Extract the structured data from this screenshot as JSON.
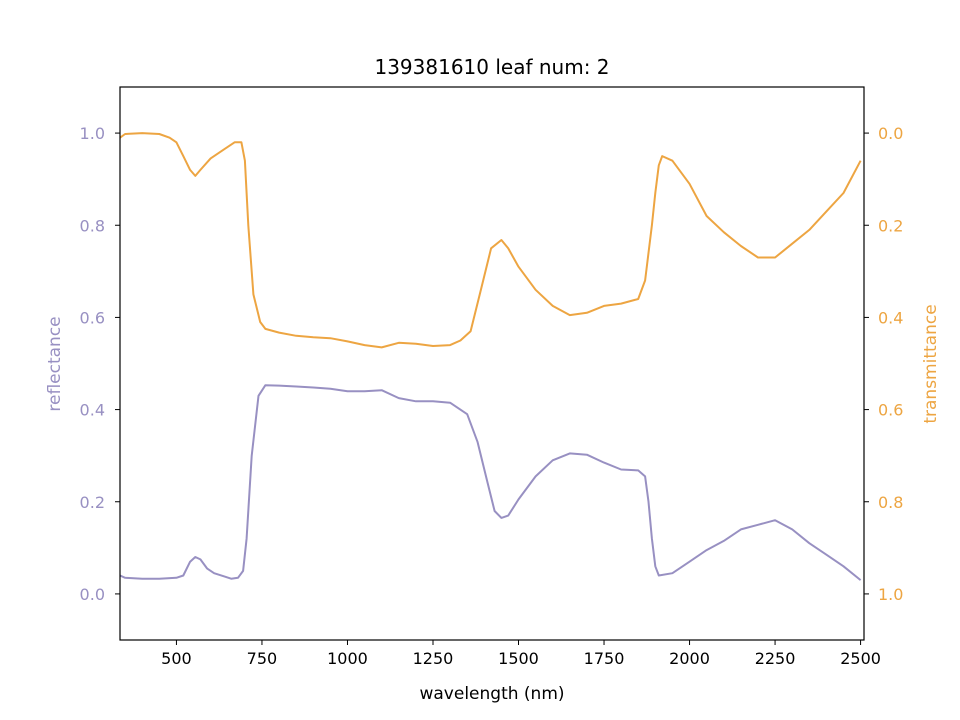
{
  "chart_data": {
    "type": "line",
    "title": "139381610 leaf num: 2",
    "xlabel": "wavelength (nm)",
    "xlim": [
      335,
      2510
    ],
    "xticks": [
      500,
      750,
      1000,
      1250,
      1500,
      1750,
      2000,
      2250,
      2500
    ],
    "grid": false,
    "axes": {
      "left": {
        "label": "reflectance",
        "color": "#9890c2",
        "ylim": [
          -0.1,
          1.1
        ],
        "ticks": [
          "0.0",
          "0.2",
          "0.4",
          "0.6",
          "0.8",
          "1.0"
        ]
      },
      "right": {
        "label": "transmittance",
        "color": "#eda542",
        "ylim": [
          1.1,
          -0.1
        ],
        "inverted": true,
        "ticks": [
          "0.0",
          "0.2",
          "0.4",
          "0.6",
          "0.8",
          "1.0"
        ]
      }
    },
    "series": [
      {
        "axis": "left",
        "color": "#9890c2",
        "x": [
          335,
          350,
          400,
          450,
          500,
          520,
          540,
          555,
          570,
          590,
          610,
          640,
          660,
          680,
          695,
          705,
          720,
          740,
          760,
          800,
          850,
          900,
          950,
          1000,
          1050,
          1100,
          1150,
          1200,
          1250,
          1300,
          1350,
          1380,
          1410,
          1430,
          1450,
          1470,
          1500,
          1550,
          1600,
          1650,
          1700,
          1750,
          1800,
          1850,
          1870,
          1880,
          1890,
          1900,
          1910,
          1950,
          2000,
          2050,
          2100,
          2150,
          2200,
          2250,
          2300,
          2350,
          2400,
          2450,
          2500
        ],
        "y": [
          0.04,
          0.035,
          0.033,
          0.033,
          0.035,
          0.04,
          0.07,
          0.08,
          0.075,
          0.055,
          0.045,
          0.038,
          0.033,
          0.035,
          0.05,
          0.12,
          0.3,
          0.43,
          0.453,
          0.452,
          0.45,
          0.448,
          0.445,
          0.44,
          0.44,
          0.442,
          0.425,
          0.418,
          0.418,
          0.415,
          0.39,
          0.33,
          0.24,
          0.18,
          0.165,
          0.17,
          0.205,
          0.255,
          0.29,
          0.305,
          0.302,
          0.285,
          0.27,
          0.268,
          0.255,
          0.2,
          0.12,
          0.06,
          0.04,
          0.045,
          0.07,
          0.095,
          0.115,
          0.14,
          0.15,
          0.16,
          0.14,
          0.11,
          0.085,
          0.06,
          0.03
        ]
      },
      {
        "axis": "right",
        "color": "#eda542",
        "x": [
          335,
          350,
          400,
          450,
          480,
          500,
          520,
          540,
          555,
          570,
          600,
          640,
          670,
          690,
          700,
          710,
          725,
          745,
          760,
          800,
          850,
          900,
          950,
          1000,
          1050,
          1100,
          1150,
          1200,
          1250,
          1300,
          1330,
          1360,
          1390,
          1420,
          1450,
          1470,
          1500,
          1550,
          1600,
          1650,
          1700,
          1750,
          1800,
          1850,
          1870,
          1890,
          1900,
          1910,
          1920,
          1950,
          2000,
          2050,
          2100,
          2150,
          2200,
          2250,
          2300,
          2350,
          2400,
          2450,
          2500
        ],
        "y": [
          0.01,
          0.002,
          0.0,
          0.002,
          0.01,
          0.02,
          0.05,
          0.08,
          0.093,
          0.08,
          0.055,
          0.035,
          0.02,
          0.02,
          0.06,
          0.2,
          0.35,
          0.41,
          0.425,
          0.433,
          0.44,
          0.443,
          0.445,
          0.452,
          0.46,
          0.465,
          0.455,
          0.457,
          0.462,
          0.46,
          0.45,
          0.43,
          0.34,
          0.25,
          0.232,
          0.25,
          0.29,
          0.34,
          0.375,
          0.395,
          0.39,
          0.375,
          0.37,
          0.36,
          0.32,
          0.2,
          0.13,
          0.07,
          0.05,
          0.06,
          0.11,
          0.18,
          0.215,
          0.245,
          0.27,
          0.27,
          0.24,
          0.21,
          0.17,
          0.13,
          0.06
        ]
      }
    ]
  }
}
